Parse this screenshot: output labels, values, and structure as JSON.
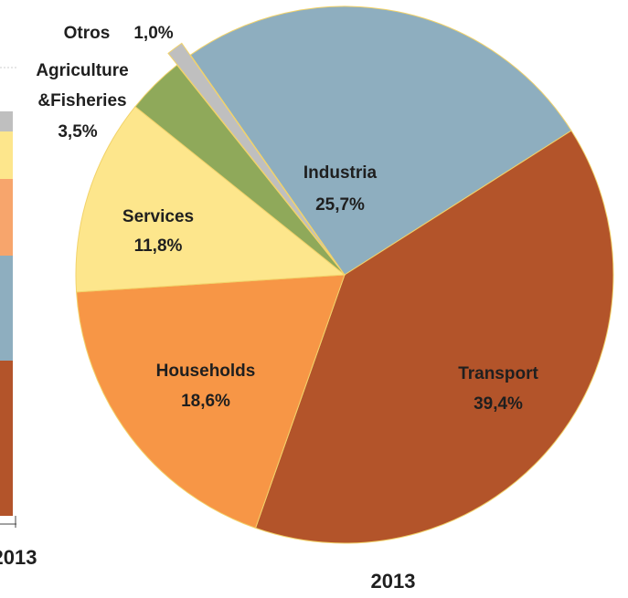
{
  "chart_data": {
    "type": "pie",
    "title": "2013",
    "categories": [
      "Industria",
      "Transport",
      "Households",
      "Services",
      "Agriculture &Fisheries",
      "Otros"
    ],
    "values": [
      25.7,
      39.4,
      18.6,
      11.8,
      3.5,
      1.0
    ],
    "value_labels": [
      "25,7%",
      "39,4%",
      "18,6%",
      "11,8%",
      "3,5%",
      "1,0%"
    ],
    "colors": [
      "#8eaebf",
      "#b3542a",
      "#f79646",
      "#fde68c",
      "#8fa95a",
      "#bfbfbf"
    ],
    "exploded": [
      "Otros"
    ]
  },
  "side_chart": {
    "title": "2013"
  }
}
